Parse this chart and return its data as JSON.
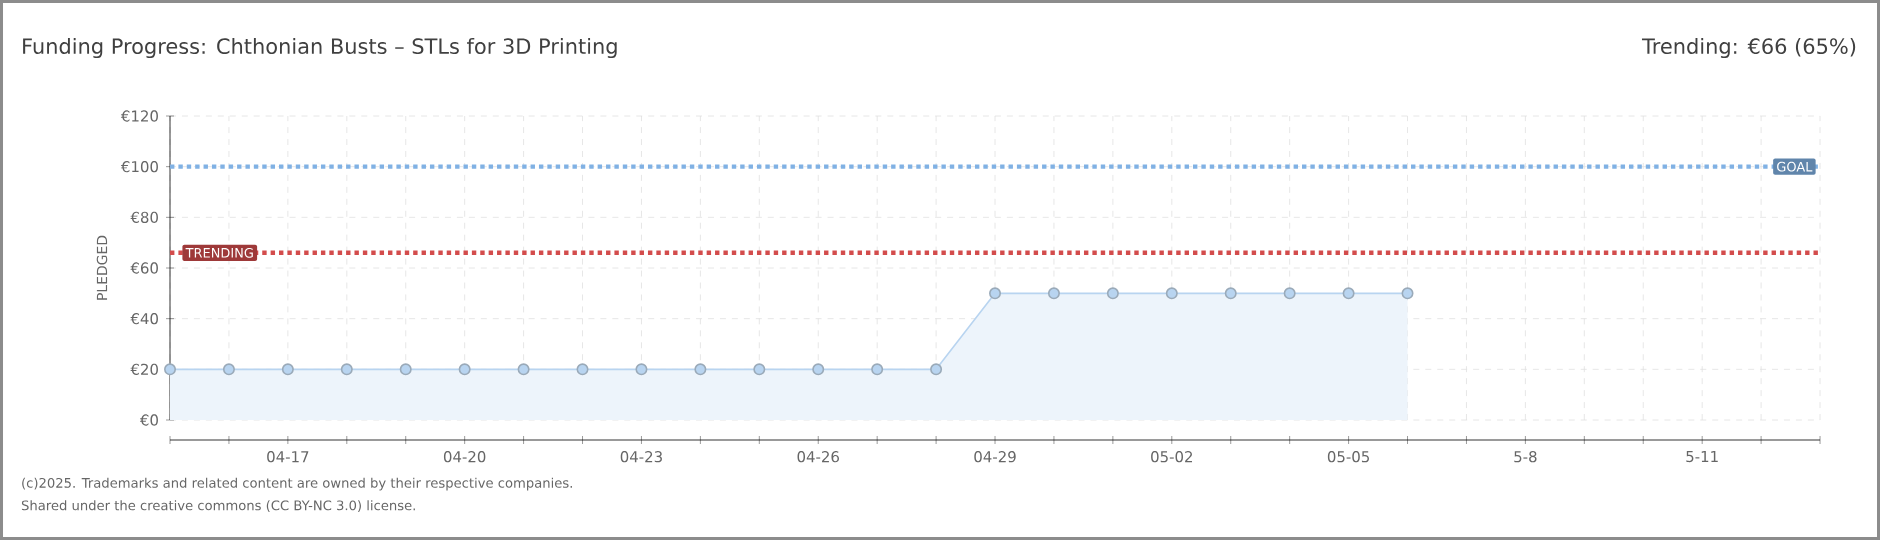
{
  "chart_data": {
    "type": "area",
    "title": "Funding Progress: Chthonian Busts – STLs for 3D Printing",
    "subtitle": "Trending:  €66 (65%)",
    "ylabel": "PLEDGED",
    "categories": [
      null,
      null,
      "04-17",
      null,
      null,
      "04-20",
      null,
      null,
      "04-23",
      null,
      null,
      "04-26",
      null,
      null,
      "04-29",
      null,
      null,
      "05-02",
      null,
      null,
      "05-05",
      null,
      null,
      "5-8",
      null,
      null,
      "5-11",
      null,
      null
    ],
    "series": [
      {
        "color": "#b8d4f0",
        "values": [
          20,
          20,
          20,
          20,
          20,
          20,
          20,
          20,
          20,
          20,
          20,
          20,
          20,
          20,
          50,
          50,
          50,
          50,
          50,
          50,
          50,
          50,
          null,
          null,
          null,
          null,
          null,
          null,
          null
        ]
      }
    ],
    "marker": "circle",
    "grid": true,
    "ylim": [
      0,
      120
    ],
    "yticks": [
      {
        "value": 0,
        "label": "€0"
      },
      {
        "value": 20,
        "label": "€20"
      },
      {
        "value": 40,
        "label": "€40"
      },
      {
        "value": 60,
        "label": "€60"
      },
      {
        "value": 80,
        "label": "€80"
      },
      {
        "value": 100,
        "label": "€100"
      },
      {
        "value": 120,
        "label": "€120"
      }
    ],
    "ref_lines": [
      {
        "axis": "y",
        "value": 100,
        "label": "GOAL",
        "color": "#80b1e4",
        "line_style": "dotted"
      },
      {
        "axis": "y",
        "value": 66,
        "label": "TRENDING",
        "color": "#d34c4c",
        "line_style": "dotted"
      }
    ],
    "annotations": [
      "(c)2025. Trademarks and related content are owned by their respective companies.",
      "Shared under the creative commons (CC BY-NC 3.0) license."
    ]
  }
}
